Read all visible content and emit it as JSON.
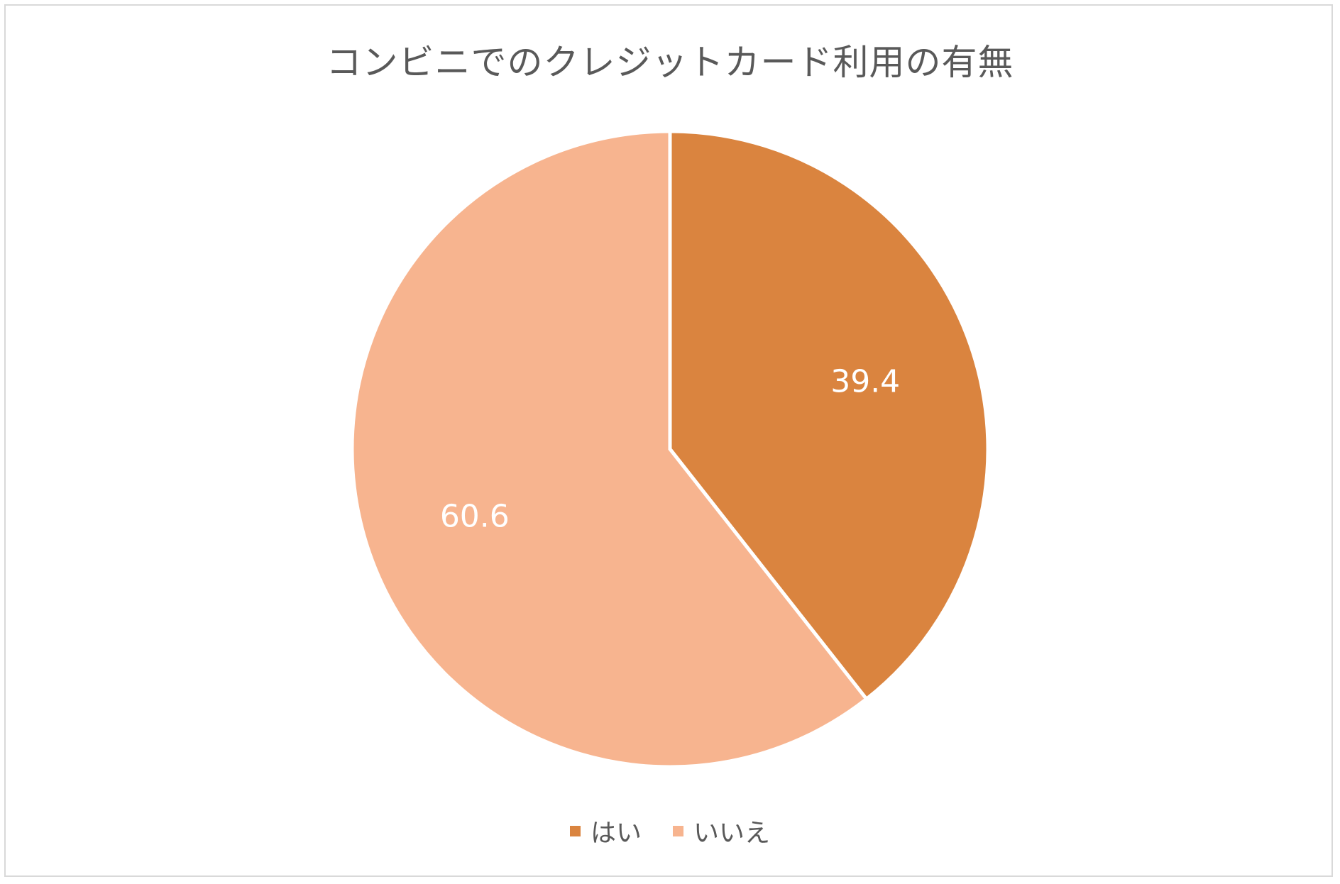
{
  "chart_data": {
    "type": "pie",
    "title": "コンビニでのクレジットカード利用の有無",
    "slices": [
      {
        "label": "はい",
        "value": 39.4,
        "color": "#DA843F"
      },
      {
        "label": "いいえ",
        "value": 60.6,
        "color": "#F7B48F"
      }
    ],
    "data_labels": [
      "39.4",
      "60.6"
    ],
    "start_angle": "12 o'clock",
    "direction": "clockwise",
    "legend_position": "bottom"
  },
  "colors": {
    "title_text": "#595959",
    "legend_text": "#595959",
    "data_label_text": "#FFFFFF",
    "slice_border": "#FFFFFF",
    "frame_border": "#D9D9D9"
  }
}
